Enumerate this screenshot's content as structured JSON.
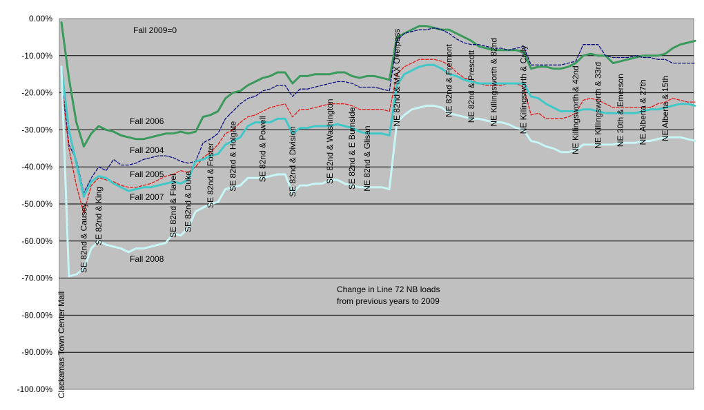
{
  "chart_data": {
    "type": "line",
    "annotations": {
      "baseline": "Fall 2009=0",
      "caption_line1": "Change in Line 72 NB loads",
      "caption_line2": "from previous years to 2009"
    },
    "ylim": [
      -100,
      0
    ],
    "y_ticks": [
      "0.00%",
      "-10.00%",
      "-20.00%",
      "-30.00%",
      "-40.00%",
      "-50.00%",
      "-60.00%",
      "-70.00%",
      "-80.00%",
      "-90.00%",
      "-100.00%"
    ],
    "y_tick_values": [
      0,
      -10,
      -20,
      -30,
      -40,
      -50,
      -60,
      -70,
      -80,
      -90,
      -100
    ],
    "grid": true,
    "x_count": 86,
    "x_tick_labels": [
      {
        "i": 0,
        "label": "Clackamas Town Center Mall"
      },
      {
        "i": 3,
        "label": "SE 82nd & Causey"
      },
      {
        "i": 5,
        "label": "SE 82nd & King"
      },
      {
        "i": 15,
        "label": "SE 82nd & Flavel"
      },
      {
        "i": 17,
        "label": "SE 82nd & Duke"
      },
      {
        "i": 20,
        "label": "SE 82nd & Foster"
      },
      {
        "i": 23,
        "label": "SE 82nd & Holgate"
      },
      {
        "i": 27,
        "label": "SE 82nd & Powell"
      },
      {
        "i": 31,
        "label": "SE 82nd & Division"
      },
      {
        "i": 36,
        "label": "SE 82nd & Washington"
      },
      {
        "i": 39,
        "label": "SE 82nd & E Burnside"
      },
      {
        "i": 41,
        "label": "NE 82nd & Glisan"
      },
      {
        "i": 45,
        "label": "NE 82nd & MAX Overpass"
      },
      {
        "i": 52,
        "label": "NE 82nd & Fremont"
      },
      {
        "i": 55,
        "label": "NE 82nd & Prescott"
      },
      {
        "i": 58,
        "label": "NE Killingsworth & 82nd"
      },
      {
        "i": 62,
        "label": "NE Killingsworth & Cully"
      },
      {
        "i": 69,
        "label": "NE Killingsworth & 42nd"
      },
      {
        "i": 72,
        "label": "NE Killingsworth & 33rd"
      },
      {
        "i": 75,
        "label": "NE 30th & Emerson"
      },
      {
        "i": 78,
        "label": "NE Alberta & 27th"
      },
      {
        "i": 81,
        "label": "NE Alberta & 15th"
      }
    ],
    "series": [
      {
        "name": "Fall 2006",
        "color": "#3a9a5b",
        "style": "solid",
        "width": 3,
        "values": [
          -1,
          -16,
          -28,
          -34.5,
          -31,
          -29,
          -30,
          -30.5,
          -31.5,
          -32,
          -32.5,
          -32.5,
          -32,
          -31.5,
          -31,
          -31,
          -30.5,
          -31,
          -30.5,
          -26.5,
          -26,
          -25,
          -21.5,
          -20,
          -19.5,
          -18,
          -17,
          -16,
          -15.5,
          -14.5,
          -14.5,
          -17.5,
          -15.5,
          -15.5,
          -15,
          -15,
          -15,
          -14.5,
          -14.5,
          -15.5,
          -16,
          -15.5,
          -15.5,
          -16,
          -16.5,
          -5,
          -4,
          -3,
          -2,
          -2,
          -2.5,
          -3,
          -3,
          -4,
          -5,
          -6,
          -7.5,
          -8,
          -8.5,
          -8.5,
          -8.5,
          -8.5,
          -9,
          -13.5,
          -13,
          -13,
          -13.5,
          -13.5,
          -13,
          -12,
          -10,
          -9.5,
          -10,
          -10,
          -12,
          -11.5,
          -11,
          -10.5,
          -10,
          -10,
          -10,
          -9.5,
          -8,
          -7,
          -6.5,
          -6
        ]
      },
      {
        "name": "Fall 2004",
        "color": "#0a0a80",
        "style": "dashed",
        "width": 1.3,
        "values": [
          -16,
          -34,
          -38,
          -47,
          -43,
          -40,
          -41,
          -38,
          -39.5,
          -39.5,
          -39,
          -38,
          -37.5,
          -37,
          -37,
          -37.5,
          -38.5,
          -39,
          -38.5,
          -33.5,
          -32.5,
          -31,
          -27,
          -25,
          -23,
          -21.5,
          -21,
          -19.5,
          -19,
          -18,
          -18,
          -21,
          -19,
          -19,
          -18.5,
          -18,
          -17.5,
          -17,
          -17,
          -17.5,
          -18.5,
          -18.5,
          -18.5,
          -19,
          -19.5,
          -6,
          -4,
          -3.5,
          -3,
          -3,
          -2.5,
          -3,
          -4,
          -5.5,
          -6.5,
          -7,
          -7,
          -7.5,
          -8,
          -8,
          -8.5,
          -8,
          -7.5,
          -12.5,
          -12.5,
          -12.5,
          -12.5,
          -12.5,
          -12,
          -11.5,
          -7,
          -7,
          -7,
          -10,
          -10.5,
          -10.5,
          -10.5,
          -10,
          -10.5,
          -10.5,
          -11,
          -11,
          -12,
          -12,
          -12,
          -12
        ]
      },
      {
        "name": "Fall 2005",
        "color": "#e21a1a",
        "style": "dashed",
        "width": 1.3,
        "values": [
          -17,
          -35,
          -45,
          -52.5,
          -45,
          -43,
          -43.5,
          -44,
          -45,
          -45.5,
          -45.5,
          -45,
          -44.5,
          -43.5,
          -42.5,
          -42,
          -41,
          -41.5,
          -40,
          -37.5,
          -36,
          -34,
          -31,
          -30,
          -28,
          -26.5,
          -26,
          -25,
          -24,
          -23.5,
          -23,
          -26.5,
          -24.5,
          -24.5,
          -24,
          -23.5,
          -23,
          -23,
          -23,
          -23.5,
          -24.5,
          -24.5,
          -24.5,
          -24.5,
          -25,
          -15,
          -13,
          -12,
          -11,
          -11,
          -11,
          -11.5,
          -12.5,
          -14.5,
          -16,
          -16.5,
          -17.5,
          -18,
          -18,
          -18,
          -17.5,
          -17.5,
          -18.5,
          -26,
          -25.5,
          -27,
          -27,
          -27,
          -26.5,
          -25.5,
          -22,
          -21.5,
          -22,
          -23,
          -24,
          -24,
          -24,
          -24,
          -24,
          -24,
          -23,
          -22.5,
          -21.5,
          -22,
          -22.5,
          -22.5
        ]
      },
      {
        "name": "Fall 2007",
        "color": "#40c8c8",
        "style": "solid",
        "width": 3,
        "values": [
          -13,
          -30,
          -39,
          -48,
          -44,
          -42.5,
          -43,
          -44.5,
          -45.5,
          -46.5,
          -46,
          -45.5,
          -45.5,
          -45,
          -44.5,
          -44,
          -44.5,
          -43.5,
          -38.5,
          -38,
          -37,
          -36.5,
          -34,
          -33,
          -32,
          -29,
          -28,
          -28,
          -28,
          -27,
          -27,
          -31,
          -29.5,
          -29.5,
          -29,
          -29,
          -29,
          -28.5,
          -29,
          -29.5,
          -30.5,
          -31,
          -31,
          -31,
          -31.5,
          -18,
          -15,
          -14,
          -13,
          -12.5,
          -12.5,
          -13.5,
          -15,
          -15.5,
          -16.5,
          -17,
          -17.5,
          -17.5,
          -17.5,
          -17.5,
          -17.5,
          -17.5,
          -17.5,
          -21,
          -21.5,
          -23,
          -24,
          -25,
          -25,
          -25,
          -24.5,
          -24.5,
          -25,
          -25.5,
          -25.5,
          -25.5,
          -25.5,
          -25.5,
          -25,
          -24.5,
          -24.5,
          -24,
          -23.5,
          -23,
          -23,
          -23.5
        ]
      },
      {
        "name": "Fall 2008",
        "color": "#c8f6f6",
        "style": "solid",
        "width": 3,
        "values": [
          -13,
          -69.5,
          -69,
          -67.5,
          -62,
          -60,
          -61,
          -61.5,
          -62,
          -63,
          -62,
          -62,
          -61.5,
          -61,
          -60.5,
          -58,
          -58.5,
          -56.5,
          -52,
          -51,
          -50,
          -49.5,
          -46,
          -45.5,
          -45,
          -43,
          -43,
          -43,
          -42.5,
          -42,
          -42,
          -47,
          -45,
          -45,
          -44.5,
          -44.5,
          -43.5,
          -43.5,
          -44.5,
          -45,
          -45.5,
          -45.5,
          -45.5,
          -45.5,
          -46,
          -28,
          -26,
          -24.5,
          -24,
          -23.5,
          -23.5,
          -24,
          -25.5,
          -26,
          -26.5,
          -27,
          -27,
          -27.5,
          -28,
          -28,
          -28.5,
          -29.5,
          -30,
          -33,
          -33.5,
          -34.5,
          -35,
          -36,
          -36,
          -35.5,
          -34,
          -34,
          -34,
          -34,
          -34,
          -33.5,
          -33.5,
          -33.5,
          -33,
          -33,
          -32.5,
          -32,
          -32,
          -32,
          -32.5,
          -33
        ]
      }
    ]
  }
}
